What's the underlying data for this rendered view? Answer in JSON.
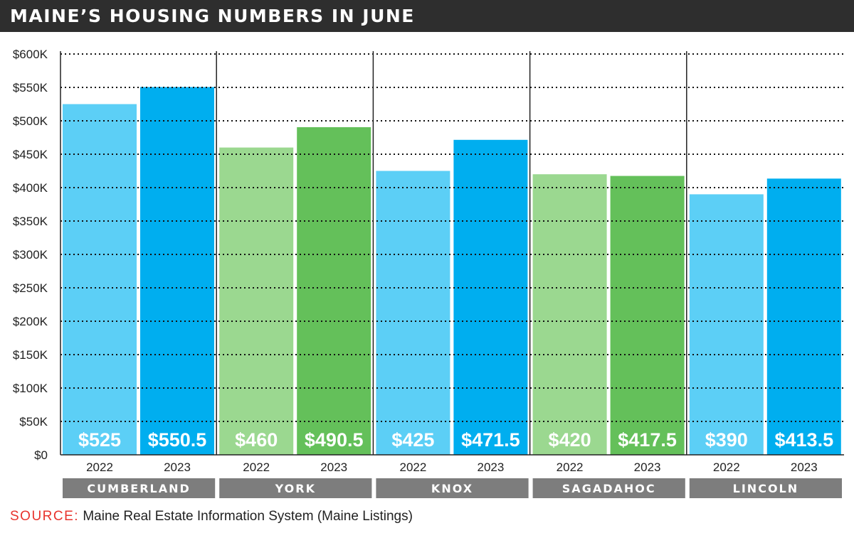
{
  "title": "MAINE’S HOUSING NUMBERS IN JUNE",
  "source": {
    "label": "SOURCE:",
    "text": "Maine Real Estate Information System (Maine Listings)"
  },
  "colors": {
    "blue_light": "#5ccff6",
    "blue_dark": "#00aeef",
    "green_light": "#9bd890",
    "green_dark": "#64c05a",
    "group_label_bg": "#7d7d7d",
    "title_bg": "#2e2e2e",
    "source_label": "#e8332d"
  },
  "chart_data": {
    "type": "bar",
    "title": "MAINE’S HOUSING NUMBERS IN JUNE",
    "ylim": [
      0,
      600
    ],
    "y_ticks": [
      {
        "value": 0,
        "label": "$0"
      },
      {
        "value": 50,
        "label": "$50K"
      },
      {
        "value": 100,
        "label": "$100K"
      },
      {
        "value": 150,
        "label": "$150K"
      },
      {
        "value": 200,
        "label": "$200K"
      },
      {
        "value": 250,
        "label": "$250K"
      },
      {
        "value": 300,
        "label": "$300K"
      },
      {
        "value": 350,
        "label": "$350K"
      },
      {
        "value": 400,
        "label": "$400K"
      },
      {
        "value": 450,
        "label": "$450K"
      },
      {
        "value": 500,
        "label": "$500K"
      },
      {
        "value": 550,
        "label": "$550K"
      },
      {
        "value": 600,
        "label": "$600K"
      }
    ],
    "grid": true,
    "groups": [
      {
        "name": "CUMBERLAND",
        "palette": "blue",
        "bars": [
          {
            "year": "2022",
            "value": 525,
            "label": "$525"
          },
          {
            "year": "2023",
            "value": 550.5,
            "label": "$550.5"
          }
        ]
      },
      {
        "name": "YORK",
        "palette": "green",
        "bars": [
          {
            "year": "2022",
            "value": 460,
            "label": "$460"
          },
          {
            "year": "2023",
            "value": 490.5,
            "label": "$490.5"
          }
        ]
      },
      {
        "name": "KNOX",
        "palette": "blue",
        "bars": [
          {
            "year": "2022",
            "value": 425,
            "label": "$425"
          },
          {
            "year": "2023",
            "value": 471.5,
            "label": "$471.5"
          }
        ]
      },
      {
        "name": "SAGADAHOC",
        "palette": "green",
        "bars": [
          {
            "year": "2022",
            "value": 420,
            "label": "$420"
          },
          {
            "year": "2023",
            "value": 417.5,
            "label": "$417.5"
          }
        ]
      },
      {
        "name": "LINCOLN",
        "palette": "blue",
        "bars": [
          {
            "year": "2022",
            "value": 390,
            "label": "$390"
          },
          {
            "year": "2023",
            "value": 413.5,
            "label": "$413.5"
          }
        ]
      }
    ]
  }
}
